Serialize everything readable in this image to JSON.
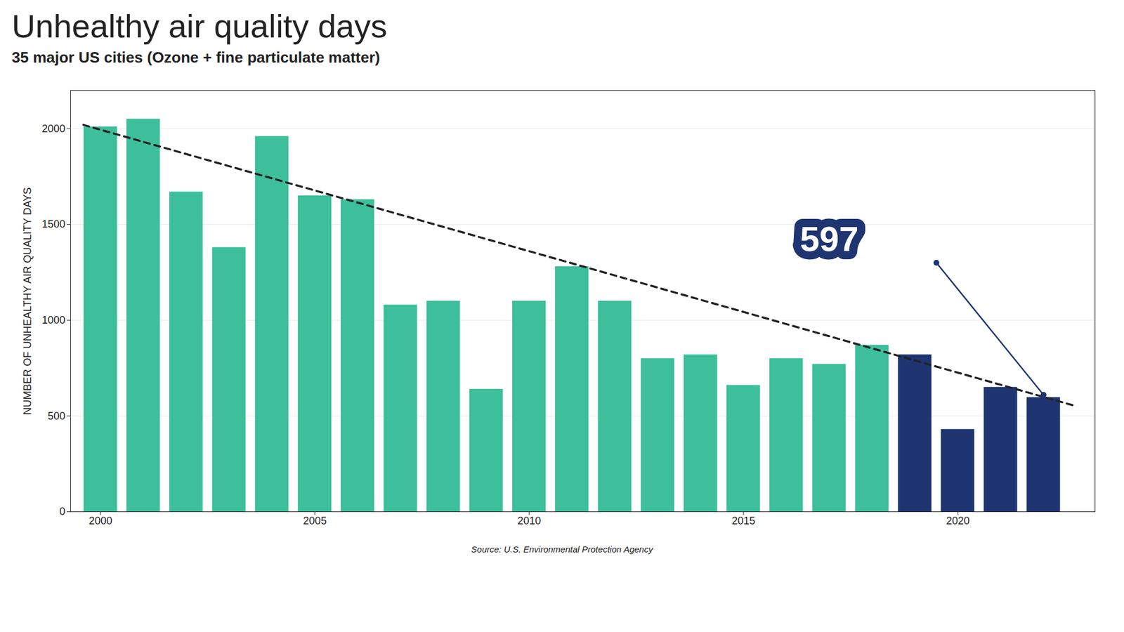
{
  "chart_data": {
    "type": "bar",
    "title": "Unhealthy air quality days",
    "subtitle": "35 major US cities (Ozone + fine particulate matter)",
    "ylabel": "NUMBER OF UNHEALTHY AIR QUALITY DAYS",
    "source": "Source: U.S. Environmental Protection Agency",
    "x": [
      2000,
      2001,
      2002,
      2003,
      2004,
      2005,
      2006,
      2007,
      2008,
      2009,
      2010,
      2011,
      2012,
      2013,
      2014,
      2015,
      2016,
      2017,
      2018,
      2019,
      2020,
      2021,
      2022
    ],
    "values": [
      2010,
      2050,
      1670,
      1380,
      1960,
      1650,
      1630,
      1080,
      1100,
      640,
      1100,
      1280,
      1100,
      800,
      820,
      660,
      800,
      770,
      870,
      820,
      430,
      650,
      597
    ],
    "colors": [
      "#3cbf9a",
      "#3cbf9a",
      "#3cbf9a",
      "#3cbf9a",
      "#3cbf9a",
      "#3cbf9a",
      "#3cbf9a",
      "#3cbf9a",
      "#3cbf9a",
      "#3cbf9a",
      "#3cbf9a",
      "#3cbf9a",
      "#3cbf9a",
      "#3cbf9a",
      "#3cbf9a",
      "#3cbf9a",
      "#3cbf9a",
      "#3cbf9a",
      "#3cbf9a",
      "#1e3572",
      "#1e3572",
      "#1e3572",
      "#1e3572"
    ],
    "trend_line": {
      "x": [
        1999.6,
        2022.7
      ],
      "values": [
        2020,
        555
      ],
      "line_style": "dashed"
    },
    "annotation": {
      "text": "597",
      "x": 2017.0,
      "y": 1420,
      "color": "#1e3572",
      "line_x": [
        2019.5,
        2022.0
      ],
      "line_y": [
        1300,
        610
      ]
    },
    "xlim": [
      1999.3,
      2023.2
    ],
    "xticks": [
      2000,
      2005,
      2010,
      2015,
      2020
    ],
    "ylim": [
      0,
      2200
    ],
    "yticks": [
      0,
      500,
      1000,
      1500,
      2000
    ],
    "grid": true
  }
}
